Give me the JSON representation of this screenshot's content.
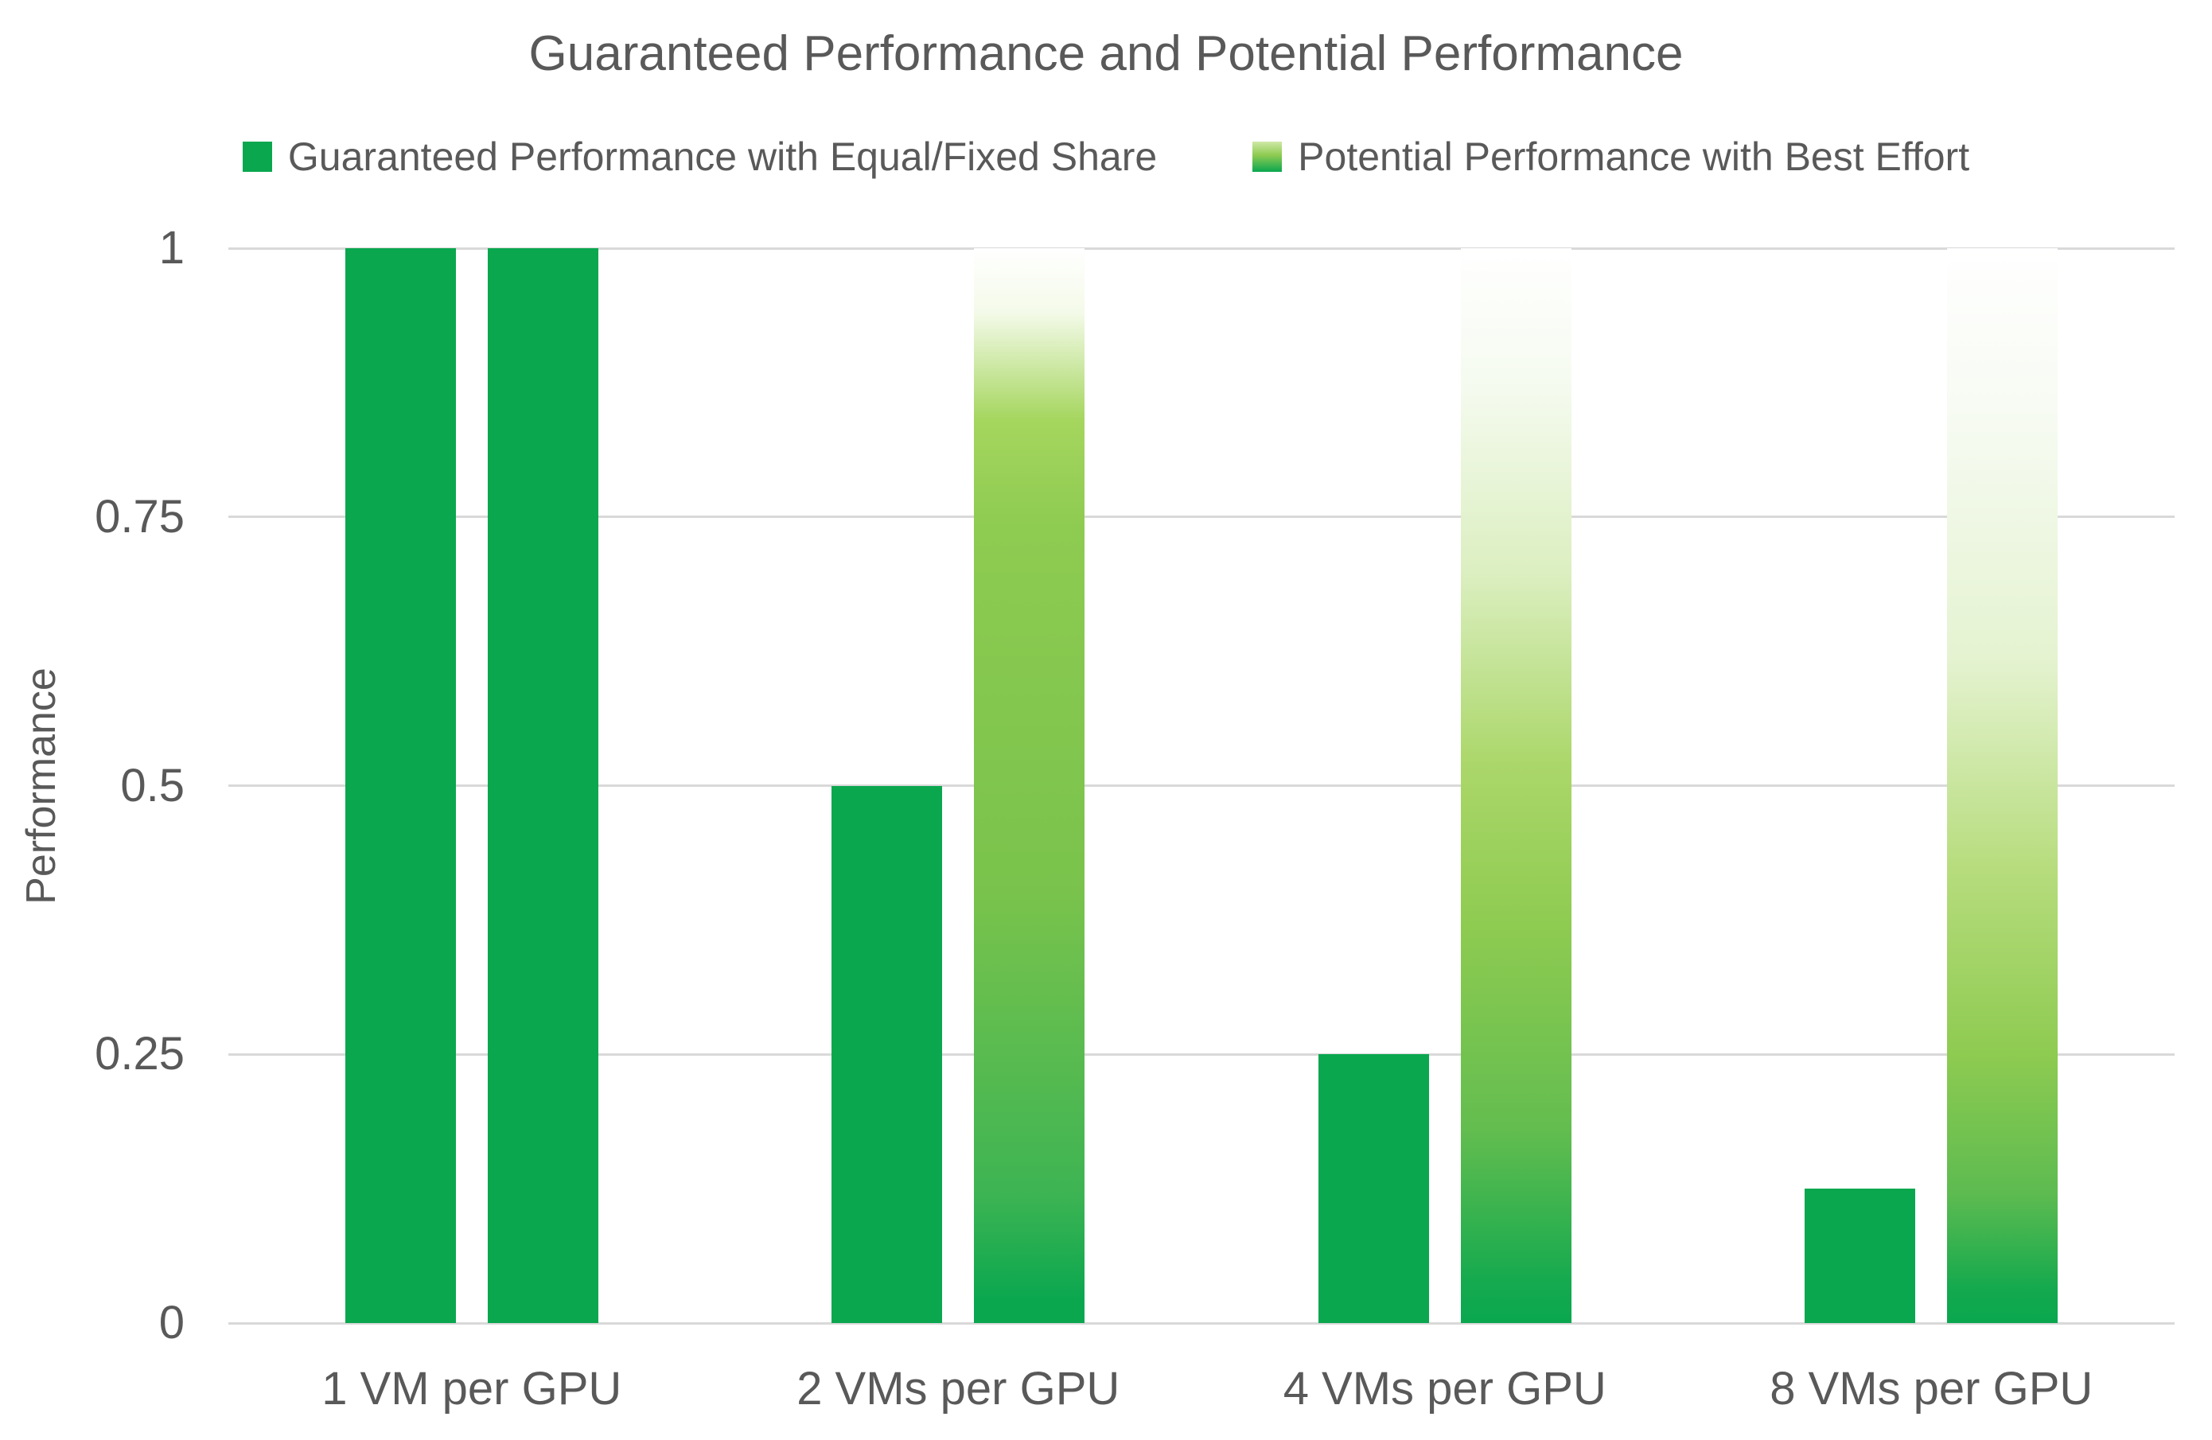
{
  "chart_data": {
    "type": "bar",
    "title": "Guaranteed Performance and Potential Performance",
    "categories": [
      "1 VM per GPU",
      "2 VMs per GPU",
      "4 VMs per GPU",
      "8 VMs per GPU"
    ],
    "series": [
      {
        "name": "Guaranteed Performance with Equal/Fixed Share",
        "values": [
          1,
          0.5,
          0.25,
          0.125
        ]
      },
      {
        "name": "Potential Performance with Best Effort",
        "values": [
          1,
          1,
          1,
          1
        ]
      }
    ],
    "xlabel": "",
    "ylabel": "Performance",
    "ylim": [
      0,
      1
    ],
    "yticks": [
      0,
      0.25,
      0.5,
      0.75,
      1
    ],
    "ytick_labels": [
      "0",
      "0.25",
      "0.5",
      "0.75",
      "1"
    ],
    "grid": true,
    "legend_position": "top"
  },
  "styles": {
    "guaranteed_color": "#0aa74f",
    "potential_light_color": "#8ecb51",
    "grid_color": "#d9d9d9",
    "text_color": "#595959",
    "legend_swatch_gradient": "#cfe8a6 0%, #8ecb51 45%, #0aa74f 100%",
    "potential_bar_gradients": [
      "#0aa74f 0%, #0aa74f 100%",
      "#ffffff 0%, #f4fae9 6%, #a5d65e 16%, #8ecb51 26%, #79c34c 60%, #3db453 88%, #0aa74f 98%",
      "#ffffff 0%, #f6fbf1 12%, #dcefc1 30%, #abd76a 48%, #8ecb51 63%, #63bd4f 82%, #16aa4f 96%, #0aa74f 100%",
      "#ffffff 0%, #f7fbf3 15%, #e5f3d1 38%, #b6dc7c 58%, #8ecb51 75%, #5dbb50 88%, #13a94e 97%, #0aa74f 100%"
    ]
  }
}
